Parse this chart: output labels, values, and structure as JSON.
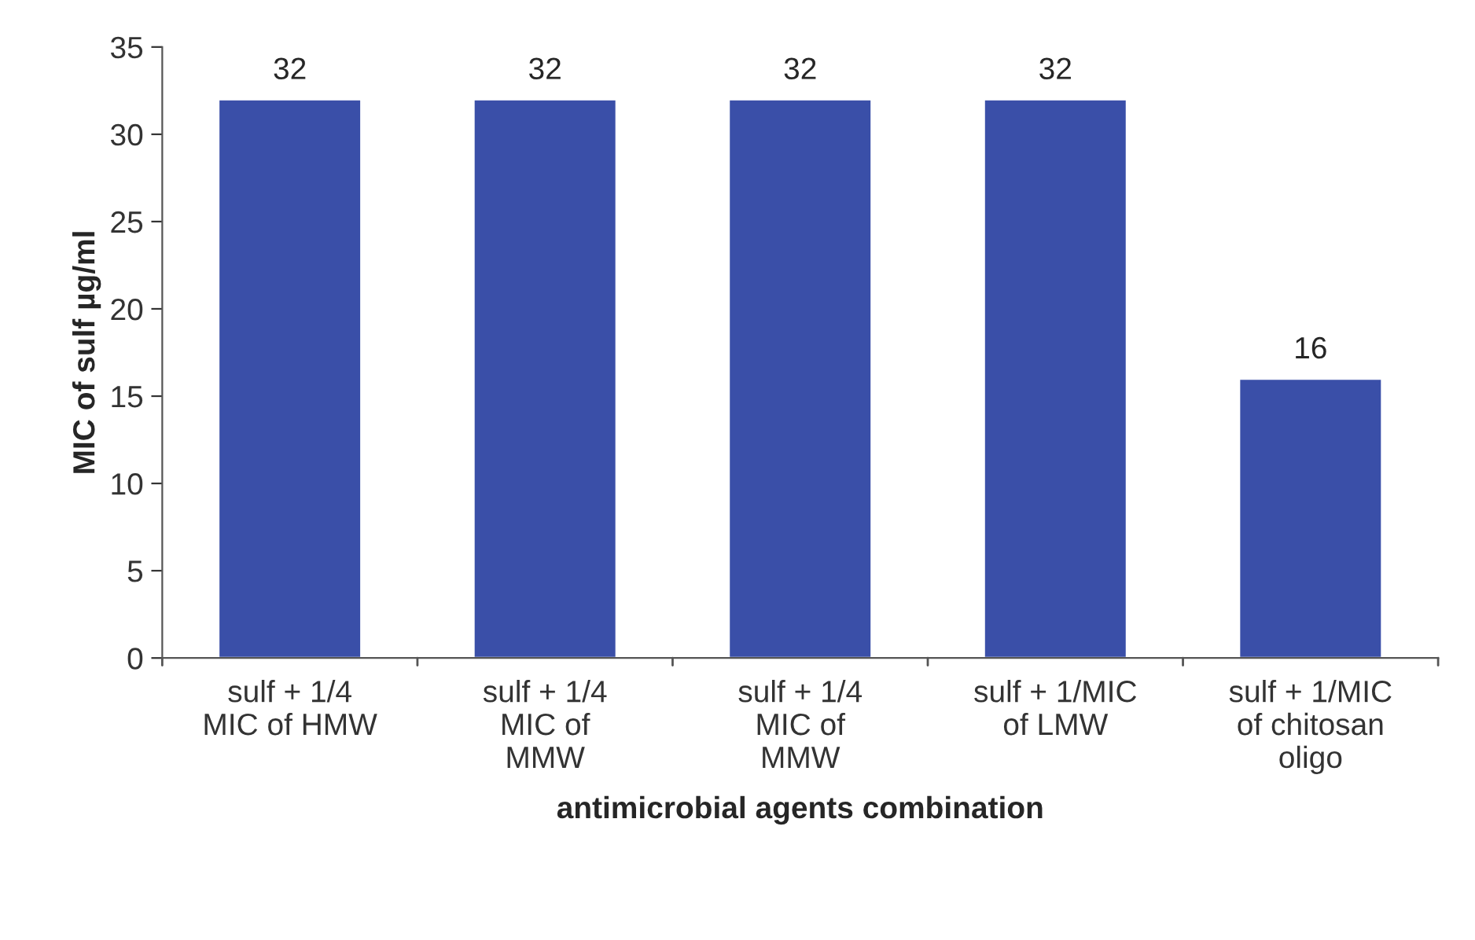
{
  "chart_data": {
    "type": "bar",
    "xlabel": "antimicrobial agents combination",
    "ylabel": "MIC of sulf µg/ml",
    "categories": [
      "sulf + 1/4\nMIC of HMW",
      "sulf + 1/4\nMIC of\nMMW",
      "sulf + 1/4\nMIC of\nMMW",
      "sulf + 1/MIC\nof LMW",
      "sulf + 1/MIC\nof chitosan\noligo"
    ],
    "values": [
      32,
      32,
      32,
      32,
      16
    ],
    "color": "#3a4fa8",
    "ylim": [
      0,
      35
    ],
    "yticks": [
      0,
      5,
      10,
      15,
      20,
      25,
      30,
      35
    ],
    "data_labels": true,
    "grid": false,
    "legend": false
  }
}
